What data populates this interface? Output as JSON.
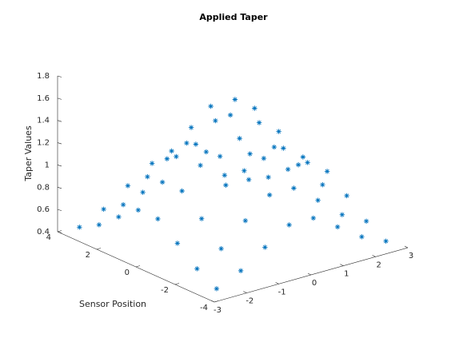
{
  "chart_data": {
    "type": "scatter3",
    "title": "Applied Taper",
    "zlabel": "Taper Values",
    "ylabel": "Sensor Position",
    "color": "#0072bd",
    "x": [
      -2.625,
      -1.875,
      -1.125,
      -0.375,
      0.375,
      1.125,
      1.875,
      2.625
    ],
    "y": [
      -3.5,
      -2.5,
      -1.5,
      -0.5,
      0.5,
      1.5,
      2.5,
      3.5
    ],
    "z": [
      [
        0.45,
        0.55,
        0.7,
        0.84,
        0.84,
        0.7,
        0.55,
        0.45
      ],
      [
        0.55,
        0.67,
        0.86,
        1.03,
        1.03,
        0.86,
        0.67,
        0.55
      ],
      [
        0.7,
        0.86,
        1.1,
        1.32,
        1.32,
        1.1,
        0.86,
        0.7
      ],
      [
        0.84,
        1.03,
        1.32,
        1.59,
        1.59,
        1.32,
        1.03,
        0.84
      ],
      [
        0.84,
        1.03,
        1.32,
        1.59,
        1.59,
        1.32,
        1.03,
        0.84
      ],
      [
        0.7,
        0.86,
        1.1,
        1.32,
        1.32,
        1.1,
        0.86,
        0.7
      ],
      [
        0.55,
        0.67,
        0.86,
        1.03,
        1.03,
        0.86,
        0.67,
        0.55
      ],
      [
        0.45,
        0.55,
        0.7,
        0.84,
        0.84,
        0.7,
        0.55,
        0.45
      ]
    ],
    "xlim": [
      -3,
      3
    ],
    "xticks": [
      -3,
      -2,
      -1,
      0,
      1,
      2,
      3
    ],
    "ylim": [
      -4,
      4
    ],
    "yticks": [
      -4,
      -2,
      0,
      2,
      4
    ],
    "zlim": [
      0.4,
      1.8
    ],
    "zticks": [
      0.4,
      0.6,
      0.8,
      1,
      1.2,
      1.4,
      1.6,
      1.8
    ]
  }
}
